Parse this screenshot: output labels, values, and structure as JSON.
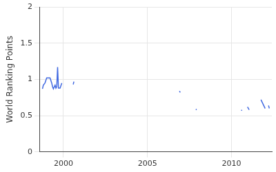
{
  "chart_data": {
    "type": "line",
    "y_label": "World Ranking Points",
    "x": [
      1998.75,
      1998.8,
      1998.9,
      1999.0,
      1999.1,
      1999.2,
      1999.3,
      1999.35,
      1999.4,
      1999.5,
      1999.55,
      1999.6,
      1999.65,
      1999.7,
      1999.8,
      1999.9,
      2000.2,
      2000.58,
      2000.62,
      2006.5,
      2006.9,
      2006.95,
      2007.4,
      2007.88,
      2007.92,
      2009.5,
      2010.58,
      2010.62,
      2010.8,
      2010.95,
      2011.05,
      2011.4,
      2011.75,
      2012.0,
      2012.1,
      2012.2,
      2012.25
    ],
    "values": [
      0.87,
      0.92,
      0.95,
      1.02,
      1.02,
      1.02,
      0.95,
      0.9,
      0.87,
      0.92,
      0.88,
      0.9,
      1.17,
      0.88,
      0.88,
      0.95,
      null,
      0.93,
      0.97,
      null,
      0.84,
      0.82,
      null,
      0.58,
      0.59,
      null,
      0.57,
      0.58,
      null,
      0.62,
      0.58,
      null,
      0.72,
      0.6,
      null,
      0.64,
      0.6
    ],
    "color": "#4169e1",
    "xlim": [
      1998.6,
      2012.4
    ],
    "xticks": [
      2000,
      2005,
      2010
    ],
    "ylim": [
      0,
      2
    ],
    "yticks": [
      0,
      0.5,
      1,
      1.5,
      2
    ],
    "grid": true
  }
}
